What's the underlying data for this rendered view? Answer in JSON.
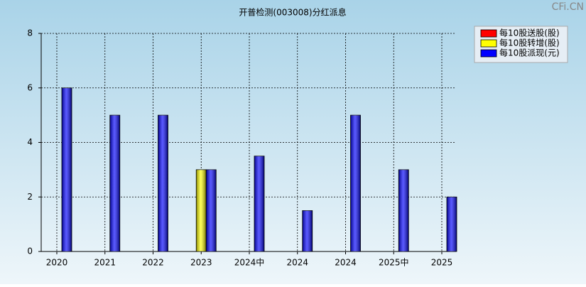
{
  "chart_data": {
    "type": "bar",
    "title": "开普检测(003008)分红派息",
    "watermark": "CFi.CN",
    "categories": [
      "2020",
      "2021",
      "2022",
      "2023",
      "2024中",
      "2024",
      "2024",
      "2025中",
      "2025"
    ],
    "series": [
      {
        "name": "每10股送股(股)",
        "color": "#ff0000",
        "values": [
          null,
          null,
          null,
          null,
          null,
          null,
          null,
          null,
          null
        ]
      },
      {
        "name": "每10股转增(股)",
        "color": "#ffff00",
        "values": [
          null,
          null,
          null,
          3,
          null,
          null,
          null,
          null,
          null
        ]
      },
      {
        "name": "每10股派现(元)",
        "color": "#0000ff",
        "values": [
          6,
          5,
          5,
          3,
          3.5,
          1.5,
          5,
          3,
          2
        ]
      }
    ],
    "ylim": [
      0,
      8
    ],
    "yticks": [
      0,
      2,
      4,
      6,
      8
    ],
    "grid": true,
    "legend": "top-right"
  }
}
